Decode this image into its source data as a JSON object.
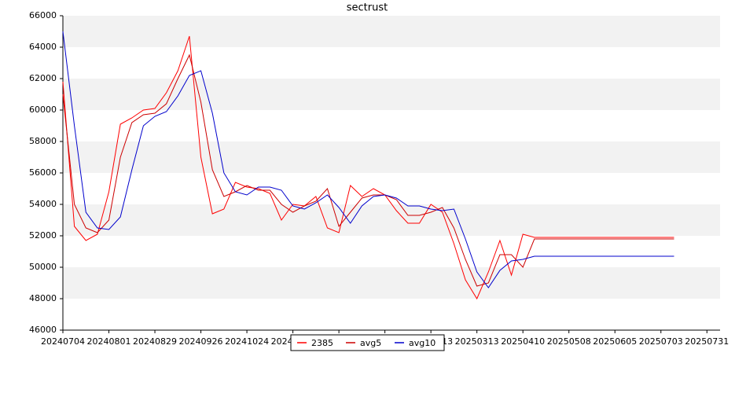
{
  "chart_data": {
    "type": "line",
    "title": "sectrust",
    "x": [
      "20240704",
      "20240711",
      "20240718",
      "20240725",
      "20240801",
      "20240808",
      "20240815",
      "20240822",
      "20240829",
      "20240905",
      "20240912",
      "20240919",
      "20240926",
      "20241003",
      "20241010",
      "20241017",
      "20241024",
      "20241031",
      "20241107",
      "20241114",
      "20241121",
      "20241128",
      "20241205",
      "20241212",
      "20241219",
      "20241226",
      "20250102",
      "20250109",
      "20250116",
      "20250123",
      "20250130",
      "20250206",
      "20250213",
      "20250220",
      "20250227",
      "20250306",
      "20250313",
      "20250320",
      "20250327",
      "20250403",
      "20250410",
      "20250417",
      "20250508",
      "20250605",
      "20250703",
      "20250711"
    ],
    "series": [
      {
        "name": "2385",
        "color": "#ff0000",
        "values": [
          61800,
          52600,
          51700,
          52100,
          54800,
          59100,
          59500,
          60000,
          60100,
          61100,
          62500,
          64700,
          57000,
          53400,
          53700,
          55400,
          55100,
          55000,
          54700,
          53000,
          54000,
          53900,
          54500,
          52500,
          52200,
          55200,
          54500,
          55000,
          54600,
          53600,
          52800,
          52800,
          54000,
          53500,
          51500,
          49200,
          48000,
          49700,
          51700,
          49500,
          52100,
          51900,
          51900,
          51900,
          51900,
          51900
        ]
      },
      {
        "name": "avg5",
        "color": "#cc0000",
        "values": [
          61000,
          54000,
          52500,
          52200,
          53000,
          57000,
          59200,
          59700,
          59800,
          60400,
          62000,
          63500,
          60500,
          56200,
          54500,
          54800,
          55200,
          54900,
          54900,
          54000,
          53500,
          53900,
          54200,
          55000,
          52600,
          53500,
          54400,
          54600,
          54600,
          54300,
          53300,
          53300,
          53500,
          53800,
          52500,
          50500,
          48800,
          49000,
          50800,
          50800,
          50000,
          51800,
          51800,
          51800,
          51800,
          51800
        ]
      },
      {
        "name": "avg10",
        "color": "#0000cc",
        "values": [
          65000,
          59000,
          53500,
          52500,
          52400,
          53200,
          56200,
          59000,
          59600,
          59900,
          60900,
          62200,
          62500,
          59800,
          56000,
          54800,
          54600,
          55100,
          55100,
          54900,
          53900,
          53700,
          54100,
          54600,
          53800,
          52800,
          53900,
          54500,
          54600,
          54400,
          53900,
          53900,
          53700,
          53600,
          53700,
          51800,
          49700,
          48700,
          49800,
          50400,
          50500,
          50700,
          50700,
          50700,
          50700,
          50700
        ]
      }
    ],
    "xlim": [
      "20240704",
      "20250808"
    ],
    "xticks": [
      "20240704",
      "20240801",
      "20240829",
      "20240926",
      "20241024",
      "20241121",
      "20241219",
      "20250116",
      "20250213",
      "20250313",
      "20250410",
      "20250508",
      "20250605",
      "20250703",
      "20250731"
    ],
    "ylim": [
      46000,
      66000
    ],
    "yticks": [
      46000,
      48000,
      50000,
      52000,
      54000,
      56000,
      58000,
      60000,
      62000,
      64000,
      66000
    ],
    "grid": "bands",
    "band_color": "#f2f2f2",
    "legend": "bottom"
  }
}
